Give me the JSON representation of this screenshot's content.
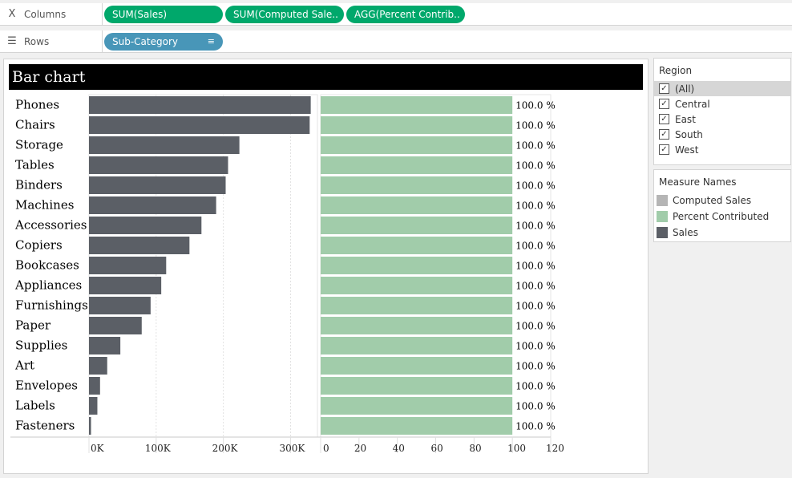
{
  "shelves": {
    "columns": {
      "label": "Columns",
      "pills": [
        "SUM(Sales)",
        "SUM(Computed Sale..",
        "AGG(Percent Contrib.."
      ]
    },
    "rows": {
      "label": "Rows",
      "pills": [
        "Sub-Category"
      ]
    }
  },
  "sheet_title": "Bar chart",
  "chart_data": {
    "type": "bar",
    "title": "Bar chart",
    "categories": [
      "Phones",
      "Chairs",
      "Storage",
      "Tables",
      "Binders",
      "Machines",
      "Accessories",
      "Copiers",
      "Bookcases",
      "Appliances",
      "Furnishings",
      "Paper",
      "Supplies",
      "Art",
      "Envelopes",
      "Labels",
      "Fasteners"
    ],
    "series": [
      {
        "name": "Sales",
        "color": "#5b5f66",
        "values": [
          330007,
          328449,
          223844,
          206966,
          203413,
          189239,
          167380,
          149528,
          114880,
          107532,
          91705,
          78479,
          46674,
          27119,
          16476,
          12486,
          3024
        ],
        "xlim": [
          0,
          340000
        ],
        "ticks": [
          0,
          100000,
          200000,
          300000
        ],
        "tick_labels": [
          "0K",
          "100K",
          "200K",
          "300K"
        ]
      },
      {
        "name": "Percent Contributed",
        "color": "#a1ccaa",
        "values": [
          100,
          100,
          100,
          100,
          100,
          100,
          100,
          100,
          100,
          100,
          100,
          100,
          100,
          100,
          100,
          100,
          100
        ],
        "data_labels": [
          "100.0 %",
          "100.0 %",
          "100.0 %",
          "100.0 %",
          "100.0 %",
          "100.0 %",
          "100.0 %",
          "100.0 %",
          "100.0 %",
          "100.0 %",
          "100.0 %",
          "100.0 %",
          "100.0 %",
          "100.0 %",
          "100.0 %",
          "100.0 %",
          "100.0 %"
        ],
        "xlim": [
          0,
          120
        ],
        "ticks": [
          0,
          20,
          40,
          60,
          80,
          100,
          120
        ],
        "tick_labels": [
          "0",
          "20",
          "40",
          "60",
          "80",
          "100",
          "120"
        ]
      }
    ],
    "grid": true
  },
  "filter": {
    "title": "Region",
    "items": [
      {
        "label": "(All)",
        "checked": true,
        "selected": true
      },
      {
        "label": "Central",
        "checked": true,
        "selected": false
      },
      {
        "label": "East",
        "checked": true,
        "selected": false
      },
      {
        "label": "South",
        "checked": true,
        "selected": false
      },
      {
        "label": "West",
        "checked": true,
        "selected": false
      }
    ]
  },
  "legend": {
    "title": "Measure Names",
    "items": [
      {
        "label": "Computed Sales",
        "color": "#b5b5b5"
      },
      {
        "label": "Percent Contributed",
        "color": "#a1ccaa"
      },
      {
        "label": "Sales",
        "color": "#5b5f66"
      }
    ]
  }
}
